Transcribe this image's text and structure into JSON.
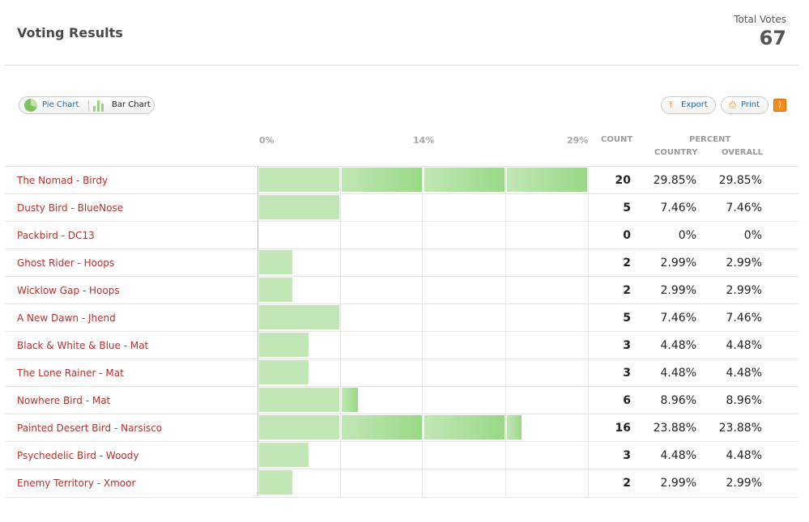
{
  "header": {
    "title": "Voting Results",
    "total_votes_label": "Total Votes",
    "total_votes": "67"
  },
  "toolbar": {
    "pie_chart_label": "Pie Chart",
    "bar_chart_label": "Bar Chart",
    "export_label": "Export",
    "print_label": "Print"
  },
  "axis": {
    "ticks": [
      "0%",
      "14%",
      "29%"
    ]
  },
  "columns": {
    "count": "COUNT",
    "percent": "PERCENT",
    "country": "COUNTRY",
    "overall": "OVERALL"
  },
  "rows": [
    {
      "name": "The Nomad - Birdy",
      "count": "20",
      "percent_country": "29.85%",
      "percent_overall": "29.85%"
    },
    {
      "name": "Dusty Bird - BlueNose",
      "count": "5",
      "percent_country": "7.46%",
      "percent_overall": "7.46%"
    },
    {
      "name": "Packbird - DC13",
      "count": "0",
      "percent_country": "0%",
      "percent_overall": "0%"
    },
    {
      "name": "Ghost Rider - Hoops",
      "count": "2",
      "percent_country": "2.99%",
      "percent_overall": "2.99%"
    },
    {
      "name": "Wicklow Gap - Hoops",
      "count": "2",
      "percent_country": "2.99%",
      "percent_overall": "2.99%"
    },
    {
      "name": "A New Dawn - Jhend",
      "count": "5",
      "percent_country": "7.46%",
      "percent_overall": "7.46%"
    },
    {
      "name": "Black & White & Blue - Mat",
      "count": "3",
      "percent_country": "4.48%",
      "percent_overall": "4.48%"
    },
    {
      "name": "The Lone Rainer - Mat",
      "count": "3",
      "percent_country": "4.48%",
      "percent_overall": "4.48%"
    },
    {
      "name": "Nowhere Bird - Mat",
      "count": "6",
      "percent_country": "8.96%",
      "percent_overall": "8.96%"
    },
    {
      "name": "Painted Desert Bird - Narsisco",
      "count": "16",
      "percent_country": "23.88%",
      "percent_overall": "23.88%"
    },
    {
      "name": "Psychedelic Bird - Woody",
      "count": "3",
      "percent_country": "4.48%",
      "percent_overall": "4.48%"
    },
    {
      "name": "Enemy Territory - Xmoor",
      "count": "2",
      "percent_country": "2.99%",
      "percent_overall": "2.99%"
    }
  ],
  "chart_data": {
    "type": "bar",
    "orientation": "horizontal",
    "categories": [
      "The Nomad - Birdy",
      "Dusty Bird - BlueNose",
      "Packbird - DC13",
      "Ghost Rider - Hoops",
      "Wicklow Gap - Hoops",
      "A New Dawn - Jhend",
      "Black & White & Blue - Mat",
      "The Lone Rainer - Mat",
      "Nowhere Bird - Mat",
      "Painted Desert Bird - Narsisco",
      "Psychedelic Bird - Woody",
      "Enemy Territory - Xmoor"
    ],
    "values": [
      20,
      5,
      0,
      2,
      2,
      5,
      3,
      3,
      6,
      16,
      3,
      2
    ],
    "xlim": [
      0,
      20
    ],
    "tick_labels": [
      "0%",
      "14%",
      "29%"
    ],
    "grid": true
  },
  "colors": {
    "bar_light": "#c2e6b6",
    "bar_dark": "#98d986",
    "name_link": "#b5312f",
    "accent": "#f08a12"
  }
}
